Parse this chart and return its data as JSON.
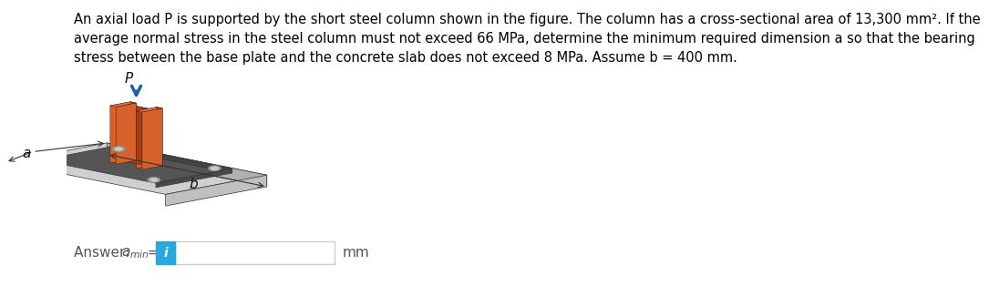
{
  "title_text": "An axial load P is supported by the short steel column shown in the figure. The column has a cross-sectional area of 13,300 mm². If the\naverage normal stress in the steel column must not exceed 66 MPa, determine the minimum required dimension a so that the bearing\nstress between the base plate and the concrete slab does not exceed 8 MPa. Assume b = 400 mm.",
  "bg_color": "#ffffff",
  "text_color": "#000000",
  "answer_box_color": "#29a8e0",
  "title_fontsize": 10.5,
  "answer_fontsize": 11,
  "slab_color_top": "#d0d0d0",
  "slab_color_front": "#b0b0b0",
  "slab_color_right": "#c0c0c0",
  "baseplate_color_top": "#555555",
  "baseplate_color_front": "#444444",
  "baseplate_color_right": "#4a4a4a",
  "col_orange": "#d4622a",
  "col_orange_dark": "#a04020",
  "col_orange_light": "#e08050",
  "bolt_color": "#999999",
  "arrow_color": "#2060a0",
  "dim_color": "#444444"
}
